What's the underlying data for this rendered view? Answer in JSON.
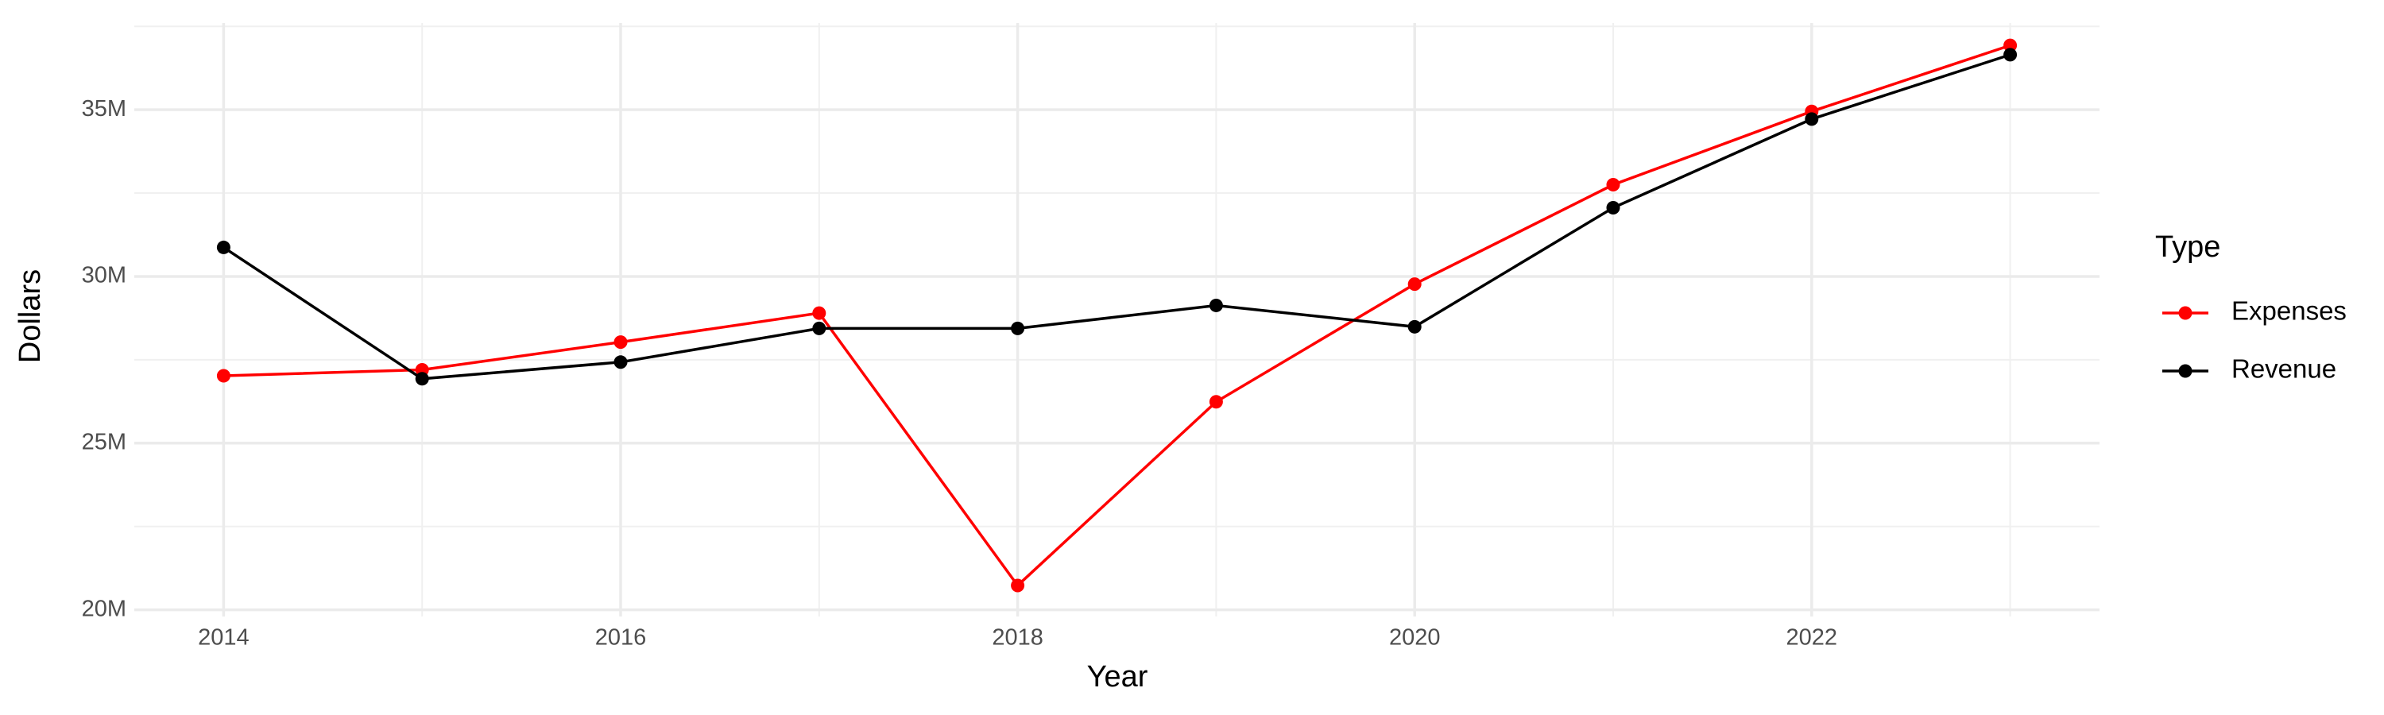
{
  "chart_data": {
    "type": "line",
    "x_label": "Year",
    "y_label": "Dollars",
    "legend_title": "Type",
    "legend_position": "right",
    "grid": true,
    "x": [
      2014,
      2015,
      2016,
      2017,
      2018,
      2019,
      2020,
      2021,
      2022,
      2023
    ],
    "series": [
      {
        "name": "Expenses",
        "color": "#ff0000",
        "values": [
          27020000,
          27200000,
          28030000,
          28900000,
          20730000,
          26240000,
          29770000,
          32750000,
          34950000,
          36930000
        ]
      },
      {
        "name": "Revenue",
        "color": "#000000",
        "values": [
          30870000,
          26930000,
          27430000,
          28440000,
          28440000,
          29130000,
          28490000,
          32060000,
          34720000,
          36650000
        ]
      }
    ],
    "xlim": [
      2013.55,
      2023.45
    ],
    "xticks": [
      2014,
      2016,
      2018,
      2020,
      2022
    ],
    "ylim": [
      19800000,
      37600000
    ],
    "yticks": [
      {
        "value": 20000000,
        "label": "20M"
      },
      {
        "value": 25000000,
        "label": "25M"
      },
      {
        "value": 30000000,
        "label": "30M"
      },
      {
        "value": 35000000,
        "label": "35M"
      }
    ]
  }
}
